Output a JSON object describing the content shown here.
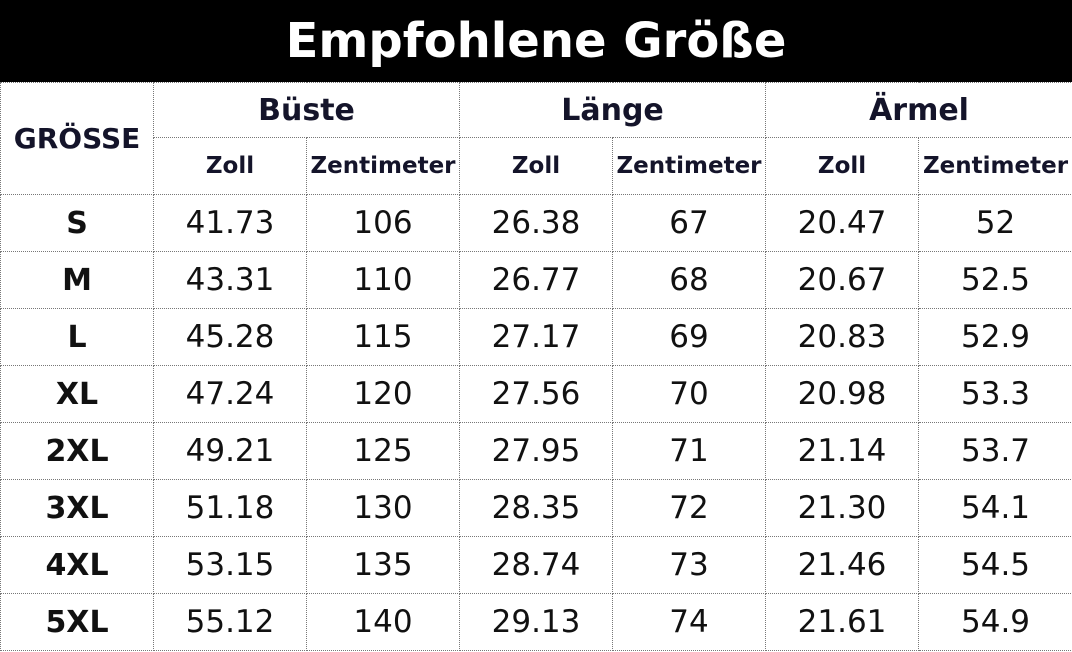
{
  "header": {
    "title": "Empfohlene Größe"
  },
  "table": {
    "corner": "GRÖSSE",
    "groups": [
      "Büste",
      "Länge",
      "Ärmel"
    ],
    "subheaders": [
      "Zoll",
      "Zentimeter",
      "Zoll",
      "Zentimeter",
      "Zoll",
      "Zentimeter"
    ],
    "rows": [
      [
        "S",
        "41.73",
        "106",
        "26.38",
        "67",
        "20.47",
        "52"
      ],
      [
        "M",
        "43.31",
        "110",
        "26.77",
        "68",
        "20.67",
        "52.5"
      ],
      [
        "L",
        "45.28",
        "115",
        "27.17",
        "69",
        "20.83",
        "52.9"
      ],
      [
        "XL",
        "47.24",
        "120",
        "27.56",
        "70",
        "20.98",
        "53.3"
      ],
      [
        "2XL",
        "49.21",
        "125",
        "27.95",
        "71",
        "21.14",
        "53.7"
      ],
      [
        "3XL",
        "51.18",
        "130",
        "28.35",
        "72",
        "21.30",
        "54.1"
      ],
      [
        "4XL",
        "53.15",
        "135",
        "28.74",
        "73",
        "21.46",
        "54.5"
      ],
      [
        "5XL",
        "55.12",
        "140",
        "29.13",
        "74",
        "21.61",
        "54.9"
      ]
    ]
  }
}
